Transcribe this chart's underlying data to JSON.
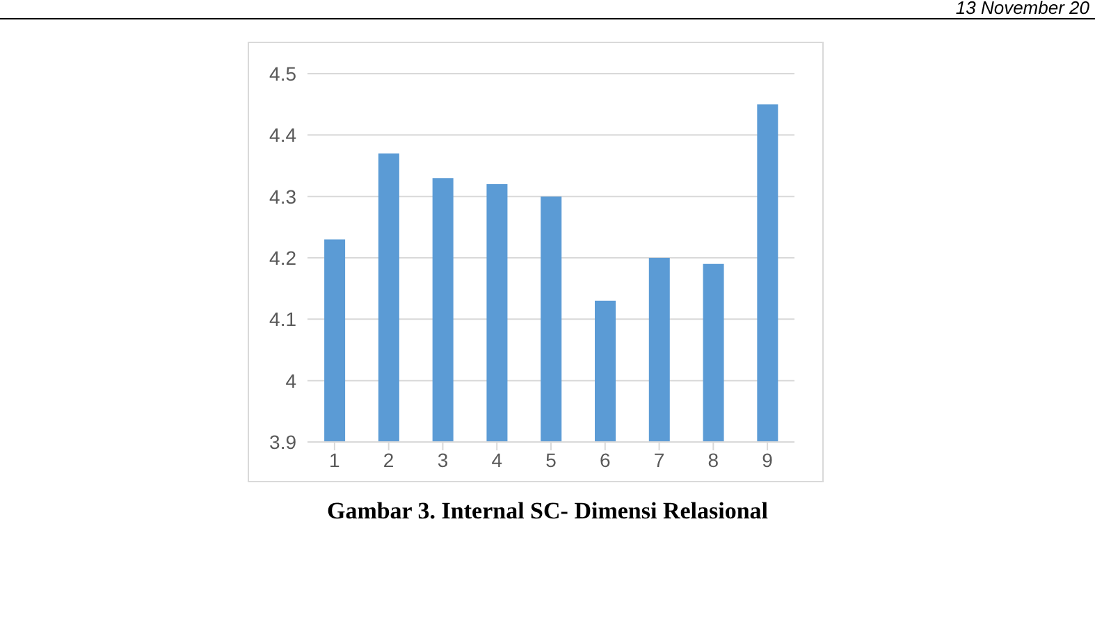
{
  "chart_data": {
    "type": "bar",
    "title": "Gambar 3. Internal SC- Dimensi Relasional",
    "annotations": [
      "13 November 20"
    ],
    "categories": [
      "1",
      "2",
      "3",
      "4",
      "5",
      "6",
      "7",
      "8",
      "9"
    ],
    "values": [
      4.23,
      4.37,
      4.33,
      4.32,
      4.3,
      4.13,
      4.2,
      4.19,
      4.45
    ],
    "color": "#5b9bd5",
    "ylim": [
      3.9,
      4.5
    ],
    "yticks": [
      3.9,
      4,
      4.1,
      4.2,
      4.3,
      4.4,
      4.5
    ],
    "grid": "y",
    "legend": false
  }
}
